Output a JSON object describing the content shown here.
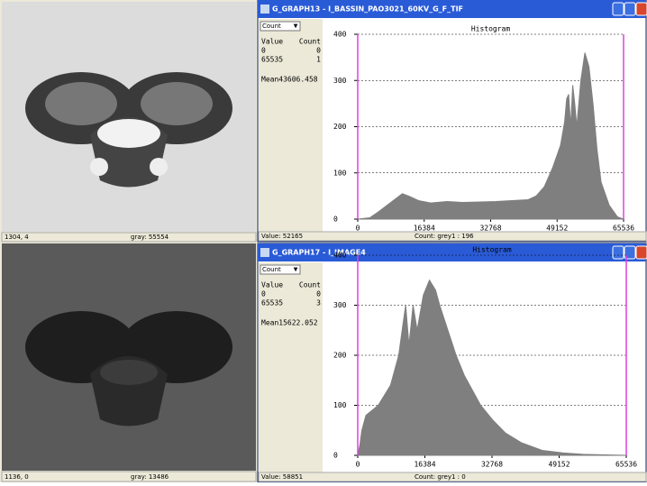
{
  "image_panels": [
    {
      "coords": "1304, 4",
      "gray": "gray: 55554"
    },
    {
      "coords": "1136, 0",
      "gray": "gray: 13486"
    }
  ],
  "histogram_windows": [
    {
      "title": "G_GRAPH13 - I_BASSIN_PAO3021_60KV_G_F_TIF",
      "dropdown": "Count",
      "table_header": [
        "Value",
        "Count"
      ],
      "rows": [
        [
          "0",
          "0"
        ],
        [
          "65535",
          "1"
        ]
      ],
      "mean": "Mean43606.458",
      "status_value": "Value: 52165",
      "status_count": "Count: grey1 : 196",
      "chart_data": {
        "type": "area",
        "title": "Histogram",
        "color": "#7f7f7f",
        "grid": true,
        "x": [
          0,
          3000,
          5000,
          8000,
          11000,
          12500,
          15000,
          18000,
          22000,
          26000,
          30000,
          34000,
          38000,
          42000,
          44000,
          46000,
          48000,
          50000,
          51000,
          51500,
          52000,
          52500,
          53000,
          53500,
          54000,
          55000,
          56000,
          57000,
          58000,
          59000,
          60000,
          62000,
          64000,
          65536
        ],
        "values": [
          0,
          3,
          15,
          35,
          55,
          50,
          40,
          35,
          38,
          36,
          37,
          38,
          40,
          42,
          50,
          70,
          110,
          160,
          210,
          260,
          270,
          200,
          290,
          250,
          200,
          300,
          360,
          330,
          250,
          150,
          80,
          30,
          5,
          0
        ],
        "xlim": [
          0,
          65536
        ],
        "ylim": [
          0,
          400
        ],
        "xticks": [
          0,
          16384,
          32768,
          49152,
          65536
        ],
        "yticks": [
          0,
          100,
          200,
          300,
          400
        ]
      }
    },
    {
      "title": "G_GRAPH17 - I_IMAGE4",
      "dropdown": "Count",
      "table_header": [
        "Value",
        "Count"
      ],
      "rows": [
        [
          "0",
          "0"
        ],
        [
          "65535",
          "3"
        ]
      ],
      "mean": "Mean15622.052",
      "status_value": "Value: 58851",
      "status_count": "Count: grey1 : 0",
      "chart_data": {
        "type": "area",
        "title": "Histogram",
        "color": "#7f7f7f",
        "grid": true,
        "x": [
          0,
          500,
          1000,
          2000,
          5000,
          8000,
          10000,
          11000,
          11700,
          12500,
          13500,
          14500,
          16000,
          17500,
          19000,
          20000,
          22000,
          24000,
          26000,
          28000,
          30000,
          33000,
          36000,
          40000,
          45000,
          50000,
          55000,
          65536
        ],
        "values": [
          0,
          20,
          50,
          80,
          100,
          140,
          200,
          260,
          300,
          220,
          300,
          250,
          320,
          350,
          330,
          300,
          250,
          200,
          160,
          130,
          100,
          70,
          45,
          25,
          10,
          5,
          2,
          0
        ],
        "xlim": [
          0,
          65536
        ],
        "ylim": [
          0,
          400
        ],
        "xticks": [
          0,
          16384,
          32768,
          49152,
          65536
        ],
        "yticks": [
          0,
          100,
          200,
          300,
          400
        ]
      }
    }
  ]
}
